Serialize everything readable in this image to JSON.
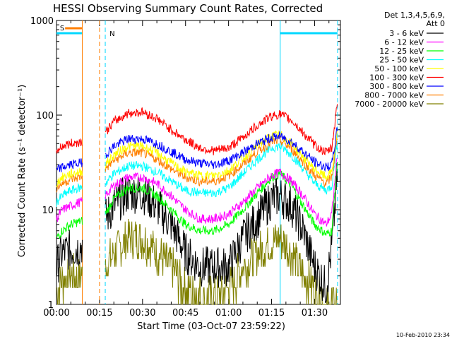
{
  "chart_data": {
    "type": "line",
    "title": "HESSI Observing Summary Count Rates, Corrected",
    "xlabel": "Start Time (03-Oct-07 23:59:22)",
    "ylabel": "Corrected Count Rate (s⁻¹ detector⁻¹)",
    "y_scale": "log",
    "ylim": [
      1,
      1000
    ],
    "xlim_minutes": [
      0,
      99
    ],
    "x_tick_labels": [
      "00:00",
      "00:15",
      "00:30",
      "00:45",
      "01:00",
      "01:15",
      "01:30"
    ],
    "x_tick_minutes": [
      0,
      15,
      30,
      45,
      60,
      75,
      90
    ],
    "y_tick_labels": [
      "1",
      "10",
      "100",
      "1000"
    ],
    "y_tick_values": [
      1,
      10,
      100,
      1000
    ],
    "legend_title": [
      "Det 1,3,4,5,6,9,",
      "Att 0"
    ],
    "legend_position": "right",
    "data_gap_minutes": [
      9,
      17
    ],
    "series": [
      {
        "name": "3 - 6 keV",
        "color": "#000000",
        "x": [
          0,
          2,
          5,
          8,
          17,
          20,
          25,
          30,
          35,
          40,
          45,
          50,
          55,
          60,
          65,
          70,
          75,
          78,
          82,
          86,
          90,
          94,
          96,
          98
        ],
        "y": [
          2.5,
          3.5,
          3.8,
          4.0,
          8.0,
          11,
          15,
          15,
          11,
          7,
          3.5,
          2.5,
          2.5,
          2.5,
          5,
          8,
          13,
          14,
          11,
          6,
          2.5,
          1.5,
          4,
          25
        ]
      },
      {
        "name": "6 - 12 keV",
        "color": "#ff00ff",
        "x": [
          0,
          2,
          5,
          8,
          17,
          20,
          25,
          30,
          35,
          40,
          45,
          50,
          55,
          60,
          65,
          70,
          75,
          78,
          82,
          86,
          90,
          94,
          96,
          98
        ],
        "y": [
          8,
          10,
          11,
          12,
          14,
          18,
          22,
          22,
          19,
          14,
          10,
          8,
          8,
          9,
          12,
          17,
          23,
          25,
          20,
          14,
          9,
          7,
          9,
          40
        ]
      },
      {
        "name": "12 - 25 keV",
        "color": "#00ff00",
        "x": [
          0,
          2,
          5,
          8,
          17,
          20,
          25,
          30,
          35,
          40,
          45,
          50,
          55,
          60,
          65,
          70,
          75,
          78,
          82,
          86,
          90,
          94,
          96,
          98
        ],
        "y": [
          5,
          6,
          7,
          7.5,
          9,
          13,
          17,
          17,
          14,
          10,
          7,
          6,
          6,
          7,
          10,
          15,
          22,
          24,
          18,
          11,
          7,
          5.5,
          6,
          35
        ]
      },
      {
        "name": "25 - 50 keV",
        "color": "#00ffff",
        "x": [
          0,
          2,
          5,
          8,
          17,
          20,
          25,
          30,
          35,
          40,
          45,
          50,
          55,
          60,
          65,
          70,
          75,
          78,
          82,
          86,
          90,
          94,
          96,
          98
        ],
        "y": [
          12,
          14,
          16,
          17,
          19,
          24,
          29,
          29,
          25,
          20,
          16,
          15,
          15,
          17,
          24,
          34,
          45,
          47,
          38,
          27,
          19,
          16,
          18,
          55
        ]
      },
      {
        "name": "50 - 100 keV",
        "color": "#ffff00",
        "x": [
          0,
          2,
          5,
          8,
          17,
          20,
          25,
          30,
          35,
          40,
          45,
          50,
          55,
          60,
          65,
          70,
          75,
          78,
          82,
          86,
          90,
          94,
          96,
          98
        ],
        "y": [
          19,
          22,
          24,
          25,
          30,
          38,
          47,
          47,
          40,
          31,
          25,
          23,
          23,
          26,
          35,
          48,
          60,
          62,
          50,
          36,
          27,
          22,
          25,
          70
        ]
      },
      {
        "name": "100 - 300 keV",
        "color": "#ff0000",
        "x": [
          0,
          2,
          5,
          8,
          17,
          20,
          25,
          30,
          35,
          40,
          45,
          50,
          55,
          60,
          65,
          70,
          75,
          78,
          82,
          86,
          90,
          94,
          96,
          98
        ],
        "y": [
          42,
          47,
          50,
          52,
          65,
          85,
          105,
          108,
          92,
          70,
          55,
          45,
          42,
          45,
          58,
          78,
          98,
          102,
          88,
          65,
          48,
          40,
          45,
          140
        ]
      },
      {
        "name": "300 - 800 keV",
        "color": "#0000ff",
        "x": [
          0,
          2,
          5,
          8,
          17,
          20,
          25,
          30,
          35,
          40,
          45,
          50,
          55,
          60,
          65,
          70,
          75,
          78,
          82,
          86,
          90,
          94,
          96,
          98
        ],
        "y": [
          26,
          28,
          30,
          31,
          38,
          47,
          56,
          56,
          50,
          41,
          34,
          31,
          30,
          33,
          40,
          50,
          58,
          60,
          52,
          41,
          32,
          28,
          30,
          75
        ]
      },
      {
        "name": "800 - 7000 keV",
        "color": "#ff7f00",
        "x": [
          0,
          2,
          5,
          8,
          17,
          20,
          25,
          30,
          35,
          40,
          45,
          50,
          55,
          60,
          65,
          70,
          75,
          78,
          82,
          86,
          90,
          94,
          96,
          98
        ],
        "y": [
          17,
          19,
          21,
          22,
          27,
          33,
          40,
          40,
          34,
          27,
          22,
          20,
          20,
          23,
          30,
          41,
          52,
          54,
          44,
          32,
          23,
          19,
          22,
          60
        ]
      },
      {
        "name": "7000 - 20000 keV",
        "color": "#808000",
        "x": [
          0,
          2,
          4,
          8,
          17,
          20,
          25,
          30,
          35,
          40,
          45,
          50,
          55,
          60,
          65,
          70,
          75,
          78,
          82,
          86,
          90,
          94,
          96
        ],
        "y": [
          1.5,
          1.8,
          2.0,
          2.0,
          2.5,
          3.5,
          5,
          5,
          3.5,
          2.5,
          1.5,
          1.2,
          1.2,
          1.5,
          2.5,
          3.5,
          4.5,
          5,
          3.5,
          2,
          1.5,
          1,
          1
        ]
      }
    ],
    "annotations": {
      "saa": {
        "label": "S",
        "color": "#ff7f00",
        "from_minutes": 3,
        "to_minutes": 9
      },
      "night_label": "N",
      "night_color": "#00d8ff",
      "night_segments": [
        [
          0,
          9
        ],
        [
          78,
          98
        ]
      ],
      "saa_vertical_lines": [
        9,
        15
      ],
      "night_vertical_lines": [
        17,
        78,
        98
      ]
    },
    "timestamp": "10-Feb-2010 23:34"
  }
}
